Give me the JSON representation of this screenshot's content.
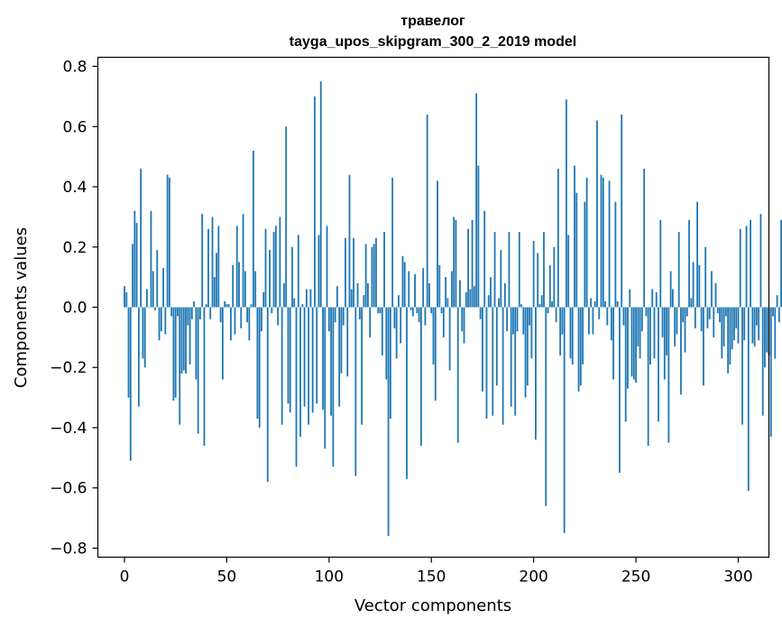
{
  "chart_data": {
    "type": "bar",
    "title_line1": "травелог",
    "title_line2": "tayga_upos_skipgram_300_2_2019 model",
    "xlabel": "Vector components",
    "ylabel": "Components values",
    "xlim": [
      -13,
      315
    ],
    "ylim": [
      -0.83,
      0.83
    ],
    "xticks": [
      0,
      50,
      100,
      150,
      200,
      250,
      300
    ],
    "yticks": [
      -0.8,
      -0.6,
      -0.4,
      -0.2,
      0.0,
      0.2,
      0.4,
      0.6,
      0.8
    ],
    "ytick_labels": [
      "−0.8",
      "−0.6",
      "−0.4",
      "−0.2",
      "0.0",
      "0.2",
      "0.4",
      "0.6",
      "0.8"
    ],
    "bar_color": "#1f77b4",
    "grid": false,
    "values": [
      0.07,
      0.05,
      -0.3,
      -0.51,
      0.21,
      0.32,
      0.28,
      -0.33,
      0.46,
      -0.17,
      -0.2,
      0.06,
      0.0,
      0.32,
      0.12,
      -0.01,
      0.19,
      -0.11,
      -0.08,
      0.13,
      -0.09,
      0.44,
      0.43,
      -0.03,
      -0.31,
      -0.3,
      -0.03,
      -0.39,
      -0.22,
      -0.21,
      -0.22,
      -0.06,
      -0.19,
      -0.04,
      0.02,
      -0.24,
      -0.42,
      -0.04,
      0.31,
      -0.46,
      0.01,
      0.26,
      -0.04,
      0.3,
      0.1,
      0.18,
      0.27,
      -0.05,
      -0.24,
      0.02,
      0.01,
      0.01,
      -0.11,
      0.14,
      -0.09,
      0.27,
      0.15,
      -0.07,
      0.31,
      0.12,
      -0.05,
      -0.11,
      0.01,
      0.52,
      0.12,
      -0.37,
      -0.4,
      -0.08,
      0.05,
      0.26,
      -0.58,
      0.19,
      -0.02,
      0.25,
      0.27,
      -0.06,
      0.3,
      -0.39,
      0.08,
      0.6,
      -0.32,
      -0.35,
      0.2,
      0.03,
      -0.53,
      0.24,
      -0.43,
      0.01,
      -0.33,
      0.06,
      -0.39,
      0.06,
      -0.35,
      0.7,
      -0.32,
      0.24,
      0.75,
      -0.34,
      -0.47,
      0.27,
      -0.08,
      -0.36,
      -0.53,
      -0.05,
      0.07,
      -0.33,
      -0.22,
      -0.06,
      0.23,
      -0.23,
      0.44,
      0.06,
      0.23,
      -0.56,
      0.08,
      -0.04,
      -0.39,
      0.04,
      0.21,
      0.08,
      -0.1,
      0.2,
      0.21,
      0.23,
      -0.02,
      -0.02,
      -0.16,
      0.25,
      -0.24,
      -0.76,
      -0.37,
      0.43,
      -0.07,
      -0.17,
      0.04,
      -0.12,
      0.17,
      0.15,
      -0.57,
      0.12,
      -0.01,
      -0.03,
      0.11,
      -0.02,
      -0.05,
      -0.46,
      0.13,
      -0.06,
      0.64,
      0.08,
      -0.02,
      -0.19,
      -0.31,
      0.42,
      0.14,
      -0.02,
      -0.1,
      0.1,
      0.03,
      -0.21,
      0.12,
      0.3,
      0.29,
      -0.45,
      0.09,
      -0.08,
      -0.12,
      0.05,
      0.26,
      0.06,
      0.29,
      0.07,
      0.71,
      0.47,
      -0.04,
      -0.28,
      0.32,
      -0.37,
      0.04,
      0.1,
      -0.36,
      0.25,
      -0.26,
      0.03,
      0.19,
      -0.39,
      0.08,
      -0.08,
      0.25,
      -0.33,
      -0.09,
      -0.36,
      -0.08,
      0.25,
      0.01,
      -0.09,
      -0.3,
      -0.26,
      -0.06,
      -0.17,
      0.22,
      -0.44,
      0.18,
      0.01,
      0.04,
      0.25,
      -0.66,
      -0.02,
      0.14,
      0.02,
      0.2,
      -0.05,
      0.46,
      -0.16,
      -0.09,
      -0.75,
      0.69,
      0.24,
      -0.17,
      -0.19,
      0.47,
      0.38,
      -0.28,
      -0.26,
      -0.19,
      0.35,
      0.43,
      -0.09,
      0.03,
      -0.09,
      0.02,
      0.62,
      -0.04,
      0.44,
      0.43,
      0.02,
      -0.06,
      0.42,
      -0.11,
      -0.24,
      0.35,
      0.02,
      -0.55,
      0.64,
      -0.06,
      -0.38,
      -0.27,
      0.06,
      -0.23,
      -0.24,
      -0.25,
      -0.13,
      -0.17,
      -0.08,
      0.46,
      -0.03,
      -0.46,
      -0.19,
      0.06,
      -0.17,
      0.05,
      -0.38,
      0.29,
      -0.1,
      -0.24,
      -0.16,
      -0.45,
      0.12,
      0.06,
      -0.13,
      -0.09,
      0.25,
      -0.29,
      -0.05,
      -0.15,
      -0.03,
      0.29,
      0.03,
      0.15,
      -0.07,
      0.35,
      0.14,
      -0.08,
      -0.26,
      0.2,
      -0.07,
      -0.04,
      0.12,
      -0.1,
      0.08,
      -0.02,
      -0.05,
      -0.17,
      -0.13,
      -0.03,
      -0.22,
      -0.19,
      -0.14,
      -0.11,
      -0.07,
      -0.12,
      0.26,
      -0.39,
      -0.11,
      0.27,
      -0.61,
      0.29,
      -0.12,
      -0.13,
      -0.06,
      -0.11,
      0.31,
      -0.36,
      -0.2,
      -0.15,
      -0.16,
      -0.43,
      -0.03,
      -0.17,
      0.04,
      -0.05,
      0.29,
      0.0
    ]
  }
}
